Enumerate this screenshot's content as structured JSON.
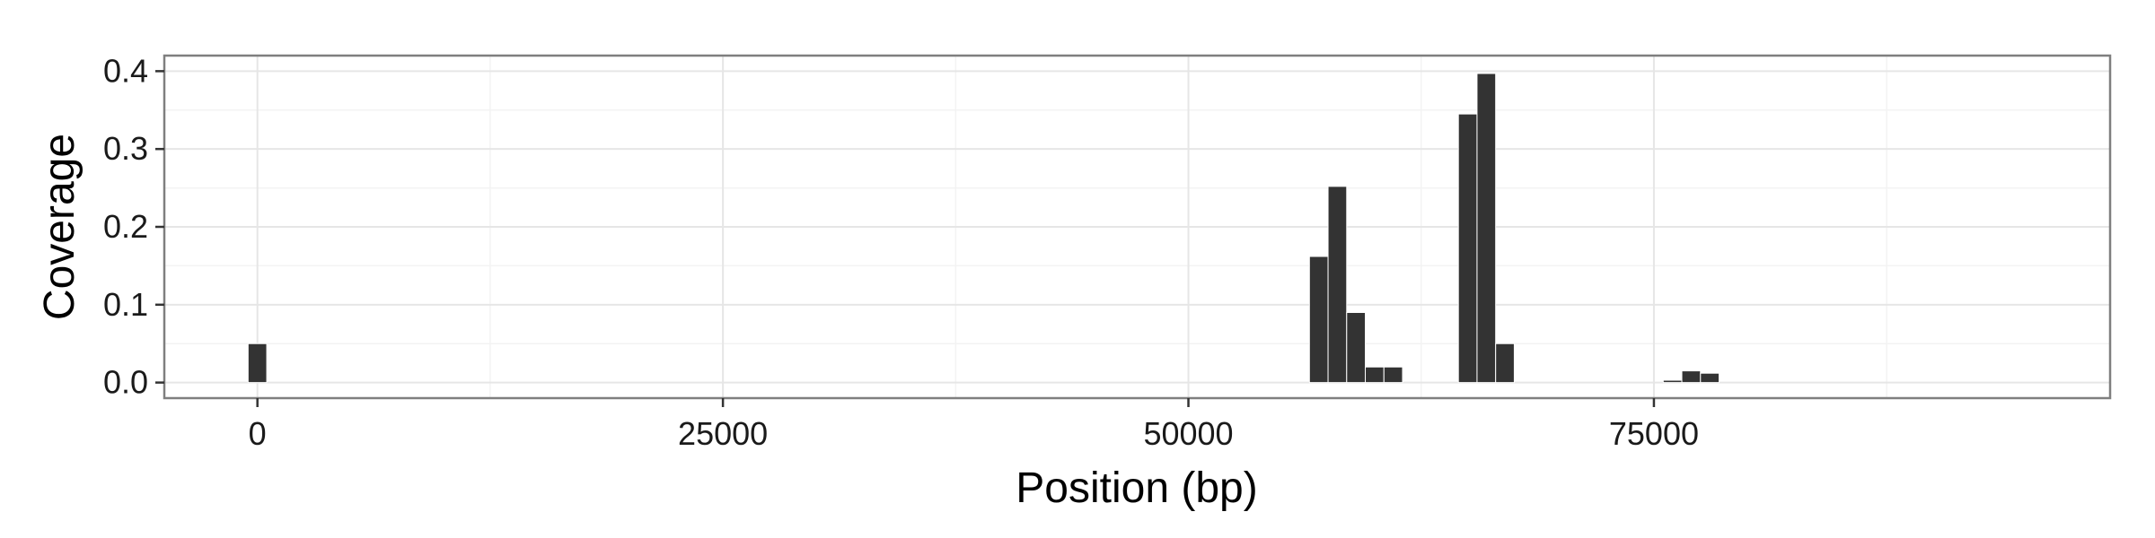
{
  "chart_data": {
    "type": "bar",
    "title": "",
    "xlabel": "Position (bp)",
    "ylabel": "Coverage",
    "xlim": [
      -5000,
      99500
    ],
    "ylim": [
      -0.02,
      0.42
    ],
    "x_ticks": [
      0,
      25000,
      50000,
      75000
    ],
    "x_tick_labels": [
      "0",
      "25000",
      "50000",
      "75000"
    ],
    "y_ticks": [
      0.0,
      0.1,
      0.2,
      0.3,
      0.4
    ],
    "y_tick_labels": [
      "0.0",
      "0.1",
      "0.2",
      "0.3",
      "0.4"
    ],
    "bin_width": 1000,
    "grid": true,
    "legend": "none",
    "bar_color": "#333333",
    "x": [
      0,
      57000,
      58000,
      59000,
      60000,
      61000,
      65000,
      66000,
      67000,
      76000,
      77000,
      78000
    ],
    "values": [
      0.05,
      0.162,
      0.252,
      0.09,
      0.02,
      0.02,
      0.345,
      0.397,
      0.05,
      0.003,
      0.015,
      0.012
    ]
  }
}
